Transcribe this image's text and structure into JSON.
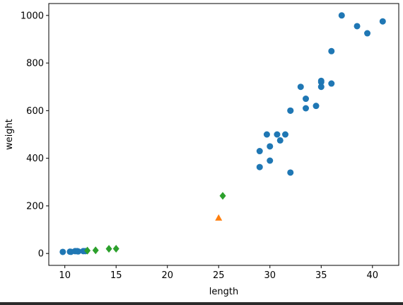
{
  "chart_data": {
    "type": "scatter",
    "title": "",
    "xlabel": "length",
    "ylabel": "weight",
    "xlim": [
      8.435,
      42.565
    ],
    "ylim": [
      -49.95,
      1049.95
    ],
    "xticks": [
      10,
      15,
      20,
      25,
      30,
      35,
      40
    ],
    "yticks": [
      0,
      200,
      400,
      600,
      800,
      1000
    ],
    "grid": false,
    "legend": "none",
    "series": [
      {
        "marker": "circle",
        "color": "#1f77b4",
        "points": [
          [
            9.8,
            6.7
          ],
          [
            10.5,
            7.5
          ],
          [
            10.6,
            7.0
          ],
          [
            11.0,
            9.7
          ],
          [
            11.2,
            9.8
          ],
          [
            11.3,
            8.7
          ],
          [
            11.8,
            10.0
          ],
          [
            12.0,
            9.9
          ],
          [
            29.0,
            430
          ],
          [
            29.0,
            363
          ],
          [
            29.7,
            500
          ],
          [
            30.0,
            450
          ],
          [
            30.0,
            390
          ],
          [
            30.7,
            500
          ],
          [
            31.0,
            475
          ],
          [
            31.5,
            500
          ],
          [
            32.0,
            340
          ],
          [
            32.0,
            600
          ],
          [
            32.0,
            600
          ],
          [
            33.0,
            700
          ],
          [
            33.5,
            610
          ],
          [
            33.5,
            650
          ],
          [
            34.5,
            620
          ],
          [
            35.0,
            725
          ],
          [
            35.0,
            720
          ],
          [
            35.0,
            700
          ],
          [
            36.0,
            714
          ],
          [
            36.0,
            850
          ],
          [
            37.0,
            1000
          ],
          [
            38.5,
            955
          ],
          [
            39.5,
            925
          ],
          [
            41.0,
            975
          ]
        ]
      },
      {
        "marker": "triangle",
        "color": "#ff7f0e",
        "points": [
          [
            25.0,
            150
          ]
        ]
      },
      {
        "marker": "diamond",
        "color": "#2ca02c",
        "points": [
          [
            12.2,
            12.2
          ],
          [
            13.0,
            13.4
          ],
          [
            14.3,
            19.7
          ],
          [
            15.0,
            19.9
          ],
          [
            25.4,
            242
          ]
        ]
      }
    ]
  }
}
